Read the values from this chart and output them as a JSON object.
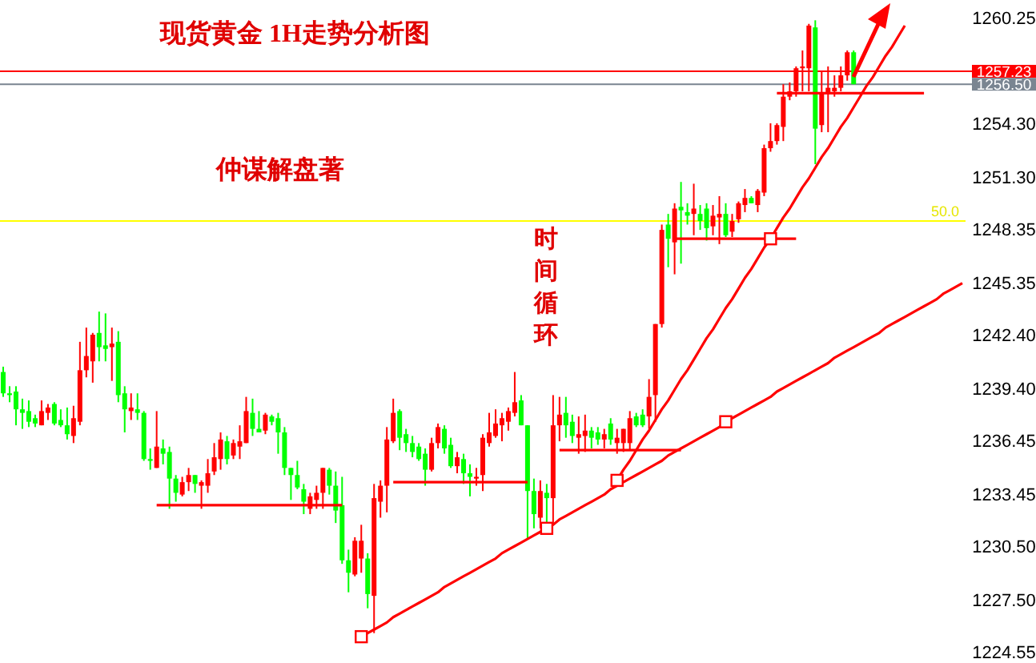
{
  "chart_data": {
    "type": "candlestick",
    "title": "现货黄金 1H走势分析图",
    "annotations": [
      "仲谋解盘著",
      "时间循环",
      {
        "text": "50.0",
        "y": 1248.8
      }
    ],
    "categories": [
      null,
      null,
      null,
      null,
      null,
      null,
      null,
      null,
      null,
      null,
      null,
      null,
      null,
      null,
      null,
      null,
      null,
      null,
      null,
      null,
      null,
      null,
      null,
      null,
      null,
      null,
      null,
      null,
      null,
      null,
      null,
      null,
      null,
      null,
      null,
      null,
      null,
      null,
      null,
      null,
      null,
      null,
      null,
      null,
      null,
      null,
      null,
      null,
      null,
      null,
      null,
      null,
      null,
      null,
      null,
      null,
      null,
      null,
      null,
      null,
      null,
      null,
      null,
      null,
      null,
      null,
      null,
      null,
      null,
      null,
      null,
      null,
      null,
      null,
      null,
      null,
      null,
      null,
      null,
      null,
      null,
      null,
      null,
      null,
      null,
      null,
      null,
      null,
      null,
      null,
      null,
      null,
      null,
      null,
      null,
      null,
      null,
      null,
      null,
      null,
      null,
      null,
      null,
      null,
      null,
      null,
      null,
      null,
      null,
      null,
      null,
      null,
      null,
      null,
      null,
      null,
      null,
      null,
      null,
      null,
      null,
      null,
      null,
      null,
      null,
      null,
      null,
      null,
      null,
      null,
      null,
      null,
      null,
      null,
      null,
      null,
      null,
      null,
      null,
      null,
      null,
      null,
      null,
      null,
      null,
      null,
      null,
      null,
      null,
      null,
      null
    ],
    "ohlc": [
      [
        1240.3,
        1240.6,
        1238.9,
        1239.1
      ],
      [
        1239.1,
        1239.5,
        1238.6,
        1239.0
      ],
      [
        1239.2,
        1239.5,
        1237.3,
        1238.2
      ],
      [
        1238.2,
        1238.8,
        1237.1,
        1238.0
      ],
      [
        1238.1,
        1238.7,
        1237.2,
        1237.5
      ],
      [
        1237.7,
        1237.9,
        1237.2,
        1237.4
      ],
      [
        1237.3,
        1238.7,
        1237.3,
        1238.1
      ],
      [
        1238.0,
        1238.5,
        1237.6,
        1238.3
      ],
      [
        1238.5,
        1238.6,
        1237.3,
        1237.4
      ],
      [
        1237.6,
        1238.2,
        1237.2,
        1237.3
      ],
      [
        1237.3,
        1238.3,
        1236.5,
        1236.8
      ],
      [
        1236.7,
        1238.4,
        1236.3,
        1237.7
      ],
      [
        1237.5,
        1242.0,
        1237.3,
        1240.4
      ],
      [
        1240.4,
        1242.8,
        1240.0,
        1241.2
      ],
      [
        1240.9,
        1242.5,
        1239.7,
        1242.4
      ],
      [
        1242.5,
        1243.7,
        1240.9,
        1241.7
      ],
      [
        1241.8,
        1243.6,
        1240.9,
        1241.6
      ],
      [
        1241.7,
        1242.8,
        1239.8,
        1241.9
      ],
      [
        1242.0,
        1242.6,
        1238.6,
        1239.0
      ],
      [
        1239.1,
        1239.5,
        1236.9,
        1238.2
      ],
      [
        1238.1,
        1239.1,
        1237.6,
        1238.3
      ],
      [
        1238.2,
        1239.1,
        1237.6,
        1238.0
      ],
      [
        1238.0,
        1238.1,
        1235.3,
        1235.4
      ],
      [
        1235.4,
        1236.0,
        1234.8,
        1235.3
      ],
      [
        1234.9,
        1238.1,
        1234.9,
        1236.1
      ],
      [
        1236.0,
        1236.5,
        1235.1,
        1235.7
      ],
      [
        1235.8,
        1236.1,
        1232.6,
        1234.3
      ],
      [
        1234.3,
        1234.5,
        1233.0,
        1233.5
      ],
      [
        1233.4,
        1234.4,
        1233.3,
        1234.1
      ],
      [
        1234.1,
        1234.9,
        1233.6,
        1234.5
      ],
      [
        1234.5,
        1234.5,
        1233.5,
        1234.0
      ],
      [
        1233.9,
        1234.2,
        1232.6,
        1234.1
      ],
      [
        1233.9,
        1235.4,
        1233.5,
        1234.6
      ],
      [
        1234.7,
        1236.3,
        1234.5,
        1235.5
      ],
      [
        1235.4,
        1236.9,
        1234.8,
        1236.5
      ],
      [
        1236.4,
        1236.7,
        1235.1,
        1235.4
      ],
      [
        1235.6,
        1236.5,
        1235.4,
        1236.3
      ],
      [
        1236.1,
        1237.3,
        1235.4,
        1236.4
      ],
      [
        1236.3,
        1238.9,
        1236.3,
        1238.1
      ],
      [
        1238.0,
        1238.8,
        1236.7,
        1237.1
      ],
      [
        1237.1,
        1238.1,
        1236.9,
        1236.9
      ],
      [
        1237.0,
        1238.0,
        1236.8,
        1237.9
      ],
      [
        1237.8,
        1237.9,
        1237.3,
        1237.5
      ],
      [
        1237.7,
        1238.0,
        1235.7,
        1236.9
      ],
      [
        1236.9,
        1237.2,
        1234.5,
        1234.9
      ],
      [
        1234.9,
        1234.9,
        1233.1,
        1234.5
      ],
      [
        1234.5,
        1235.3,
        1233.7,
        1233.8
      ],
      [
        1233.7,
        1234.0,
        1232.3,
        1233.0
      ],
      [
        1232.6,
        1233.5,
        1232.3,
        1233.3
      ],
      [
        1233.1,
        1233.9,
        1232.6,
        1233.5
      ],
      [
        1233.5,
        1234.9,
        1232.6,
        1234.9
      ],
      [
        1234.8,
        1234.9,
        1233.4,
        1233.9
      ],
      [
        1233.9,
        1234.7,
        1231.8,
        1232.5
      ],
      [
        1232.8,
        1234.4,
        1229.5,
        1229.7
      ],
      [
        1229.7,
        1230.3,
        1227.9,
        1229.0
      ],
      [
        1228.9,
        1231.0,
        1228.8,
        1230.8
      ],
      [
        1229.8,
        1231.7,
        1229.0,
        1230.8
      ],
      [
        1229.8,
        1230.1,
        1227.0,
        1227.8
      ],
      [
        1227.7,
        1234.0,
        1225.6,
        1233.2
      ],
      [
        1233.0,
        1234.2,
        1232.1,
        1233.9
      ],
      [
        1233.9,
        1237.2,
        1232.4,
        1236.5
      ],
      [
        1236.4,
        1238.8,
        1236.3,
        1238.0
      ],
      [
        1238.1,
        1238.2,
        1235.9,
        1236.6
      ],
      [
        1236.8,
        1237.1,
        1235.8,
        1236.3
      ],
      [
        1236.3,
        1236.7,
        1235.5,
        1235.8
      ],
      [
        1236.1,
        1236.3,
        1235.3,
        1235.4
      ],
      [
        1235.7,
        1236.0,
        1233.9,
        1234.8
      ],
      [
        1234.8,
        1236.6,
        1234.7,
        1236.3
      ],
      [
        1236.3,
        1237.4,
        1236.0,
        1237.2
      ],
      [
        1237.1,
        1237.3,
        1235.7,
        1236.0
      ],
      [
        1236.2,
        1236.6,
        1234.9,
        1235.0
      ],
      [
        1235.0,
        1235.8,
        1234.6,
        1235.5
      ],
      [
        1235.4,
        1235.7,
        1234.0,
        1234.6
      ],
      [
        1234.6,
        1235.1,
        1233.3,
        1234.4
      ],
      [
        1234.3,
        1234.9,
        1233.9,
        1234.4
      ],
      [
        1234.5,
        1236.8,
        1233.6,
        1236.6
      ],
      [
        1236.3,
        1238.0,
        1236.1,
        1236.9
      ],
      [
        1236.7,
        1238.2,
        1236.6,
        1237.4
      ],
      [
        1237.3,
        1238.0,
        1236.4,
        1237.7
      ],
      [
        1237.5,
        1238.3,
        1237.0,
        1238.1
      ],
      [
        1238.0,
        1240.3,
        1237.8,
        1238.6
      ],
      [
        1238.7,
        1239.0,
        1237.3,
        1237.3
      ],
      [
        1237.3,
        1237.3,
        1230.9,
        1233.6
      ],
      [
        1233.6,
        1234.3,
        1231.5,
        1232.3
      ],
      [
        1232.1,
        1234.2,
        1231.5,
        1233.6
      ],
      [
        1233.5,
        1234.0,
        1231.7,
        1233.2
      ],
      [
        1233.2,
        1239.0,
        1231.7,
        1237.3
      ],
      [
        1237.3,
        1238.9,
        1236.4,
        1237.9
      ],
      [
        1238.0,
        1238.9,
        1236.6,
        1237.3
      ],
      [
        1237.5,
        1237.9,
        1236.3,
        1236.7
      ],
      [
        1236.6,
        1237.8,
        1235.7,
        1236.8
      ],
      [
        1236.7,
        1237.9,
        1235.8,
        1237.0
      ],
      [
        1237.0,
        1237.2,
        1236.0,
        1236.6
      ],
      [
        1236.9,
        1237.2,
        1236.2,
        1236.5
      ],
      [
        1236.5,
        1237.1,
        1236.0,
        1236.8
      ],
      [
        1237.4,
        1237.7,
        1236.2,
        1236.5
      ],
      [
        1236.3,
        1237.1,
        1235.7,
        1236.6
      ],
      [
        1236.3,
        1237.1,
        1235.8,
        1237.1
      ],
      [
        1236.3,
        1238.1,
        1235.9,
        1237.7
      ],
      [
        1237.8,
        1238.0,
        1237.2,
        1237.3
      ],
      [
        1237.9,
        1238.2,
        1237.2,
        1237.3
      ],
      [
        1237.8,
        1239.9,
        1237.1,
        1238.9
      ],
      [
        1239.0,
        1243.0,
        1237.5,
        1243.0
      ],
      [
        1243.0,
        1248.6,
        1242.8,
        1248.3
      ],
      [
        1248.6,
        1249.2,
        1246.2,
        1247.8
      ],
      [
        1247.6,
        1249.8,
        1245.8,
        1249.5
      ],
      [
        1249.6,
        1251.0,
        1246.4,
        1249.4
      ],
      [
        1249.3,
        1249.8,
        1248.6,
        1249.1
      ],
      [
        1249.2,
        1250.9,
        1248.0,
        1249.5
      ],
      [
        1249.2,
        1249.7,
        1248.3,
        1248.8
      ],
      [
        1249.5,
        1249.8,
        1247.7,
        1248.4
      ],
      [
        1248.5,
        1249.7,
        1248.0,
        1249.1
      ],
      [
        1249.0,
        1250.2,
        1247.5,
        1249.2
      ],
      [
        1249.2,
        1249.8,
        1247.9,
        1248.0
      ],
      [
        1248.2,
        1249.2,
        1247.9,
        1248.8
      ],
      [
        1248.9,
        1249.9,
        1248.7,
        1249.8
      ],
      [
        1249.7,
        1250.6,
        1249.3,
        1250.1
      ],
      [
        1250.1,
        1250.2,
        1249.8,
        1249.8
      ],
      [
        1249.7,
        1250.6,
        1249.3,
        1250.5
      ],
      [
        1250.4,
        1253.1,
        1250.2,
        1252.9
      ],
      [
        1252.9,
        1254.3,
        1252.7,
        1253.3
      ],
      [
        1253.3,
        1254.3,
        1253.1,
        1254.2
      ],
      [
        1254.1,
        1256.5,
        1253.3,
        1255.8
      ],
      [
        1255.8,
        1256.6,
        1255.6,
        1256.1
      ],
      [
        1256.1,
        1257.5,
        1255.8,
        1257.4
      ],
      [
        1257.4,
        1258.4,
        1256.1,
        1257.5
      ],
      [
        1257.4,
        1259.9,
        1256.1,
        1259.8
      ],
      [
        1259.7,
        1260.1,
        1252.0,
        1254.0
      ],
      [
        1254.2,
        1257.2,
        1253.8,
        1256.0
      ],
      [
        1256.0,
        1257.5,
        1253.8,
        1256.3
      ],
      [
        1256.1,
        1257.0,
        1255.8,
        1256.3
      ],
      [
        1256.3,
        1257.5,
        1256.1,
        1257.0
      ],
      [
        1257.0,
        1258.4,
        1256.7,
        1258.3
      ],
      [
        1258.3,
        1258.4,
        1256.5,
        1256.5
      ],
      null,
      null,
      null,
      null,
      null,
      null,
      null,
      null,
      null,
      null,
      null,
      null,
      null,
      null,
      null,
      null,
      null
    ],
    "colors": [
      "#00ff00",
      "#00ff00",
      "#00ff00",
      "#00ff00",
      "#00ff00",
      "#00ff00",
      "#ff0000",
      "#ff0000",
      "#00ff00",
      "#00ff00",
      "#00ff00",
      "#ff0000",
      "#ff0000",
      "#ff0000",
      "#ff0000",
      "#00ff00",
      "#00ff00",
      "#ff0000",
      "#00ff00",
      "#00ff00",
      "#ff0000",
      "#00ff00",
      "#00ff00",
      "#00ff00",
      "#ff0000",
      "#00ff00",
      "#00ff00",
      "#00ff00",
      "#ff0000",
      "#ff0000",
      "#00ff00",
      "#ff0000",
      "#ff0000",
      "#ff0000",
      "#ff0000",
      "#00ff00",
      "#ff0000",
      "#ff0000",
      "#ff0000",
      "#00ff00",
      "#00ff00",
      "#ff0000",
      "#00ff00",
      "#00ff00",
      "#00ff00",
      "#00ff00",
      "#00ff00",
      "#00ff00",
      "#ff0000",
      "#ff0000",
      "#ff0000",
      "#00ff00",
      "#00ff00",
      "#00ff00",
      "#00ff00",
      "#ff0000",
      "#ff0000",
      "#00ff00",
      "#ff0000",
      "#ff0000",
      "#ff0000",
      "#ff0000",
      "#00ff00",
      "#00ff00",
      "#00ff00",
      "#00ff00",
      "#00ff00",
      "#ff0000",
      "#ff0000",
      "#00ff00",
      "#00ff00",
      "#ff0000",
      "#00ff00",
      "#00ff00",
      "#ff0000",
      "#ff0000",
      "#ff0000",
      "#ff0000",
      "#ff0000",
      "#ff0000",
      "#ff0000",
      "#00ff00",
      "#00ff00",
      "#00ff00",
      "#ff0000",
      "#00ff00",
      "#ff0000",
      "#ff0000",
      "#00ff00",
      "#00ff00",
      "#ff0000",
      "#ff0000",
      "#00ff00",
      "#00ff00",
      "#ff0000",
      "#00ff00",
      "#ff0000",
      "#ff0000",
      "#ff0000",
      "#00ff00",
      "#00ff00",
      "#ff0000",
      "#ff0000",
      "#ff0000",
      "#00ff00",
      "#ff0000",
      "#00ff00",
      "#00ff00",
      "#ff0000",
      "#00ff00",
      "#00ff00",
      "#ff0000",
      "#ff0000",
      "#00ff00",
      "#ff0000",
      "#ff0000",
      "#ff0000",
      "#00ff00",
      "#ff0000",
      "#ff0000",
      "#ff0000",
      "#ff0000",
      "#ff0000",
      "#ff0000",
      "#ff0000",
      "#ff0000",
      "#ff0000",
      "#00ff00",
      "#ff0000",
      "#ff0000",
      "#ff0000",
      "#ff0000",
      "#ff0000",
      "#00ff00",
      null,
      null,
      null,
      null,
      null,
      null,
      null,
      null,
      null,
      null,
      null,
      null,
      null,
      null,
      null,
      null,
      null
    ],
    "series": [
      {
        "type": "line",
        "color": "#ff0000",
        "values": [
          null,
          null,
          null,
          null,
          null,
          null,
          null,
          null,
          null,
          null,
          null,
          null,
          null,
          null,
          null,
          null,
          null,
          null,
          null,
          null,
          null,
          null,
          null,
          null,
          null,
          null,
          null,
          null,
          null,
          null,
          null,
          null,
          null,
          null,
          null,
          null,
          null,
          null,
          null,
          null,
          null,
          null,
          null,
          null,
          null,
          null,
          null,
          null,
          null,
          null,
          null,
          null,
          null,
          null,
          null,
          null,
          1225.4,
          1225.6,
          1225.8,
          1226.0,
          1226.2,
          1226.5,
          1226.7,
          1226.9,
          1227.1,
          1227.3,
          1227.5,
          1227.7,
          1227.9,
          1228.2,
          1228.4,
          1228.6,
          1228.8,
          1229.0,
          1229.2,
          1229.4,
          1229.6,
          1229.8,
          1230.1,
          1230.3,
          1230.5,
          1230.7,
          1230.9,
          1231.1,
          1231.3,
          1231.5,
          1231.7,
          1232.0,
          1232.2,
          1232.4,
          1232.6,
          1232.8,
          1233.0,
          1233.2,
          1233.4,
          1233.7,
          1233.9,
          1234.1,
          1234.3,
          1234.5,
          1234.7,
          1234.9,
          1235.1,
          1235.3,
          1235.6,
          1235.8,
          1236.0,
          1236.2,
          1236.4,
          1236.6,
          1236.8,
          1237.0,
          1237.2,
          1237.5,
          1237.7,
          1237.9,
          1238.1,
          1238.3,
          1238.5,
          1238.7,
          1238.9,
          1239.2,
          1239.4,
          1239.6,
          1239.8,
          1240.0,
          1240.2,
          1240.4,
          1240.6,
          1240.8,
          1241.1,
          1241.3,
          1241.5,
          1241.7,
          1241.9,
          1242.1,
          1242.3,
          1242.5,
          1242.8,
          1243.0,
          1243.2,
          1243.4,
          1243.6,
          1243.8,
          1244.0,
          1244.2,
          1244.4,
          1244.7,
          1244.9,
          1245.1,
          1245.3
        ]
      },
      {
        "type": "line",
        "color": "#ff0000",
        "values": [
          null,
          null,
          null,
          null,
          null,
          null,
          null,
          null,
          null,
          null,
          null,
          null,
          null,
          null,
          null,
          null,
          null,
          null,
          null,
          null,
          null,
          null,
          null,
          null,
          null,
          null,
          null,
          null,
          null,
          null,
          null,
          null,
          null,
          null,
          null,
          null,
          null,
          null,
          null,
          null,
          null,
          null,
          null,
          null,
          null,
          null,
          null,
          null,
          null,
          null,
          null,
          null,
          null,
          null,
          null,
          null,
          null,
          null,
          null,
          null,
          null,
          null,
          null,
          null,
          null,
          null,
          null,
          null,
          null,
          null,
          null,
          null,
          null,
          null,
          null,
          null,
          null,
          null,
          null,
          null,
          null,
          null,
          null,
          null,
          null,
          null,
          null,
          null,
          null,
          null,
          null,
          null,
          null,
          null,
          null,
          null,
          1234.2,
          1234.8,
          1235.3,
          1235.9,
          1236.5,
          1237.0,
          1237.6,
          1238.2,
          1238.7,
          1239.3,
          1239.9,
          1240.4,
          1241.0,
          1241.6,
          1242.2,
          1242.7,
          1243.3,
          1243.9,
          1244.4,
          1245.0,
          1245.6,
          1246.1,
          1246.7,
          1247.3,
          1247.8,
          1248.4,
          1249.0,
          1249.5,
          1250.1,
          1250.7,
          1251.2,
          1251.8,
          1252.4,
          1252.9,
          1253.5,
          1254.1,
          1254.6,
          1255.2,
          1255.8,
          1256.4,
          1256.9,
          1257.5,
          1258.1,
          1258.6,
          1259.2,
          1259.8,
          null,
          null,
          null,
          null,
          null,
          null,
          null,
          null,
          null
        ]
      },
      {
        "type": "line",
        "color": "#ff0000",
        "values": [
          null,
          null,
          null,
          null,
          null,
          null,
          null,
          null,
          null,
          null,
          null,
          null,
          null,
          null,
          null,
          null,
          null,
          null,
          null,
          null,
          null,
          null,
          null,
          null,
          1232.8,
          1232.8,
          1232.8,
          1232.8,
          1232.8,
          1232.8,
          1232.8,
          1232.8,
          1232.8,
          1232.8,
          1232.8,
          1232.8,
          1232.8,
          1232.8,
          1232.8,
          1232.8,
          1232.8,
          1232.8,
          1232.8,
          1232.8,
          1232.8,
          1232.8,
          1232.8,
          1232.8,
          1232.8,
          1232.8,
          1232.8,
          1232.8,
          1232.8,
          1232.8,
          null,
          null,
          null,
          null,
          null,
          null,
          null,
          1234.1,
          1234.1,
          1234.1,
          1234.1,
          1234.1,
          1234.1,
          1234.1,
          1234.1,
          1234.1,
          1234.1,
          1234.1,
          1234.1,
          1234.1,
          1234.1,
          1234.1,
          1234.1,
          1234.1,
          1234.1,
          1234.1,
          1234.1,
          1234.1,
          1234.1,
          null,
          null,
          null,
          null,
          1235.9,
          1235.9,
          1235.9,
          1235.9,
          1235.9,
          1235.9,
          1235.9,
          1235.9,
          1235.9,
          1235.9,
          1235.9,
          1235.9,
          1235.9,
          1235.9,
          1235.9,
          1235.9,
          1235.9,
          1235.9,
          1235.9,
          1235.9,
          null,
          null,
          null,
          null,
          null,
          null,
          null,
          null,
          null,
          null,
          null,
          null,
          null,
          null,
          1256.0,
          1256.0,
          1256.0,
          1256.0,
          1256.0,
          1256.0,
          1256.0,
          1256.0,
          1256.0,
          1256.0,
          1256.0,
          1256.0,
          1256.0,
          1256.0,
          1256.0,
          1256.0,
          1256.0,
          1256.0,
          1256.0,
          1256.0,
          1256.0,
          1256.0,
          1256.0,
          1256.0,
          null,
          null,
          null,
          null,
          null,
          null
        ]
      },
      {
        "type": "line",
        "color": "#ff0000",
        "values": [
          null,
          null,
          null,
          null,
          null,
          null,
          null,
          null,
          null,
          null,
          null,
          null,
          null,
          null,
          null,
          null,
          null,
          null,
          null,
          null,
          null,
          null,
          null,
          null,
          null,
          null,
          null,
          null,
          null,
          null,
          null,
          null,
          null,
          null,
          null,
          null,
          null,
          null,
          null,
          null,
          null,
          null,
          null,
          null,
          null,
          null,
          null,
          null,
          null,
          null,
          null,
          null,
          null,
          null,
          null,
          null,
          null,
          null,
          null,
          null,
          null,
          null,
          null,
          null,
          null,
          null,
          null,
          null,
          null,
          null,
          null,
          null,
          null,
          null,
          null,
          null,
          null,
          null,
          null,
          null,
          null,
          null,
          null,
          null,
          null,
          null,
          null,
          null,
          null,
          null,
          null,
          null,
          null,
          null,
          null,
          null,
          null,
          null,
          null,
          null,
          null,
          null,
          null,
          null,
          null,
          1247.8,
          1247.8,
          1247.8,
          1247.8,
          1247.8,
          1247.8,
          1247.8,
          1247.8,
          1247.8,
          1247.8,
          1247.8,
          1247.8,
          1247.8,
          1247.8,
          1247.8,
          1247.8,
          1247.8,
          1247.8,
          1247.8,
          1247.8,
          null,
          null,
          null,
          null,
          null,
          null,
          null,
          null,
          null,
          null,
          null,
          null,
          null,
          null,
          null,
          null,
          null,
          null,
          null,
          null,
          null,
          null,
          null,
          null,
          null,
          null
        ]
      },
      {
        "type": "scatter",
        "color": "#ff0000",
        "marker": "square",
        "values": [
          null,
          null,
          null,
          null,
          null,
          null,
          null,
          null,
          null,
          null,
          null,
          null,
          null,
          null,
          null,
          null,
          null,
          null,
          null,
          null,
          null,
          null,
          null,
          null,
          null,
          null,
          null,
          null,
          null,
          null,
          null,
          null,
          null,
          null,
          null,
          null,
          null,
          null,
          null,
          null,
          null,
          null,
          null,
          null,
          null,
          null,
          null,
          null,
          null,
          null,
          null,
          null,
          null,
          null,
          null,
          null,
          1225.4,
          null,
          null,
          null,
          null,
          null,
          null,
          null,
          null,
          null,
          null,
          null,
          null,
          null,
          null,
          null,
          null,
          null,
          null,
          null,
          null,
          null,
          null,
          null,
          null,
          null,
          null,
          null,
          null,
          1231.5,
          null,
          null,
          null,
          null,
          null,
          null,
          null,
          null,
          null,
          null,
          1234.2,
          null,
          null,
          null,
          null,
          null,
          null,
          null,
          null,
          null,
          null,
          null,
          null,
          null,
          null,
          null,
          null,
          1237.5,
          null,
          null,
          null,
          null,
          null,
          null,
          1247.8,
          null,
          null,
          null,
          null,
          null,
          null,
          null,
          null,
          null,
          null,
          null,
          null,
          null,
          null,
          null,
          null,
          null,
          null,
          null,
          null,
          null,
          null,
          null,
          null,
          null,
          null,
          null,
          null,
          null,
          null
        ]
      }
    ],
    "ylim": [
      1224.55,
      1260.25
    ],
    "yticks": [
      1224.55,
      {
        "value": 1227.5,
        "label": "1227.50"
      },
      {
        "value": 1230.5,
        "label": "1230.50"
      },
      1233.45,
      1236.45,
      {
        "value": 1239.4,
        "label": "1239.40"
      },
      {
        "value": 1242.4,
        "label": "1242.40"
      },
      1245.35,
      1248.35,
      {
        "value": 1251.3,
        "label": "1251.30"
      },
      {
        "value": 1254.3,
        "label": "1254.30"
      },
      1260.25
    ],
    "ref_lines": [
      {
        "axis": "y",
        "value": 1257.23,
        "label": "1257.23",
        "color": "#ff0000"
      },
      {
        "axis": "y",
        "value": 1256.5,
        "label": "1256.50",
        "color": "#7a8591"
      },
      {
        "axis": "y",
        "value": 1248.8,
        "color": "#ffff00"
      }
    ],
    "tick_labels": "y"
  }
}
